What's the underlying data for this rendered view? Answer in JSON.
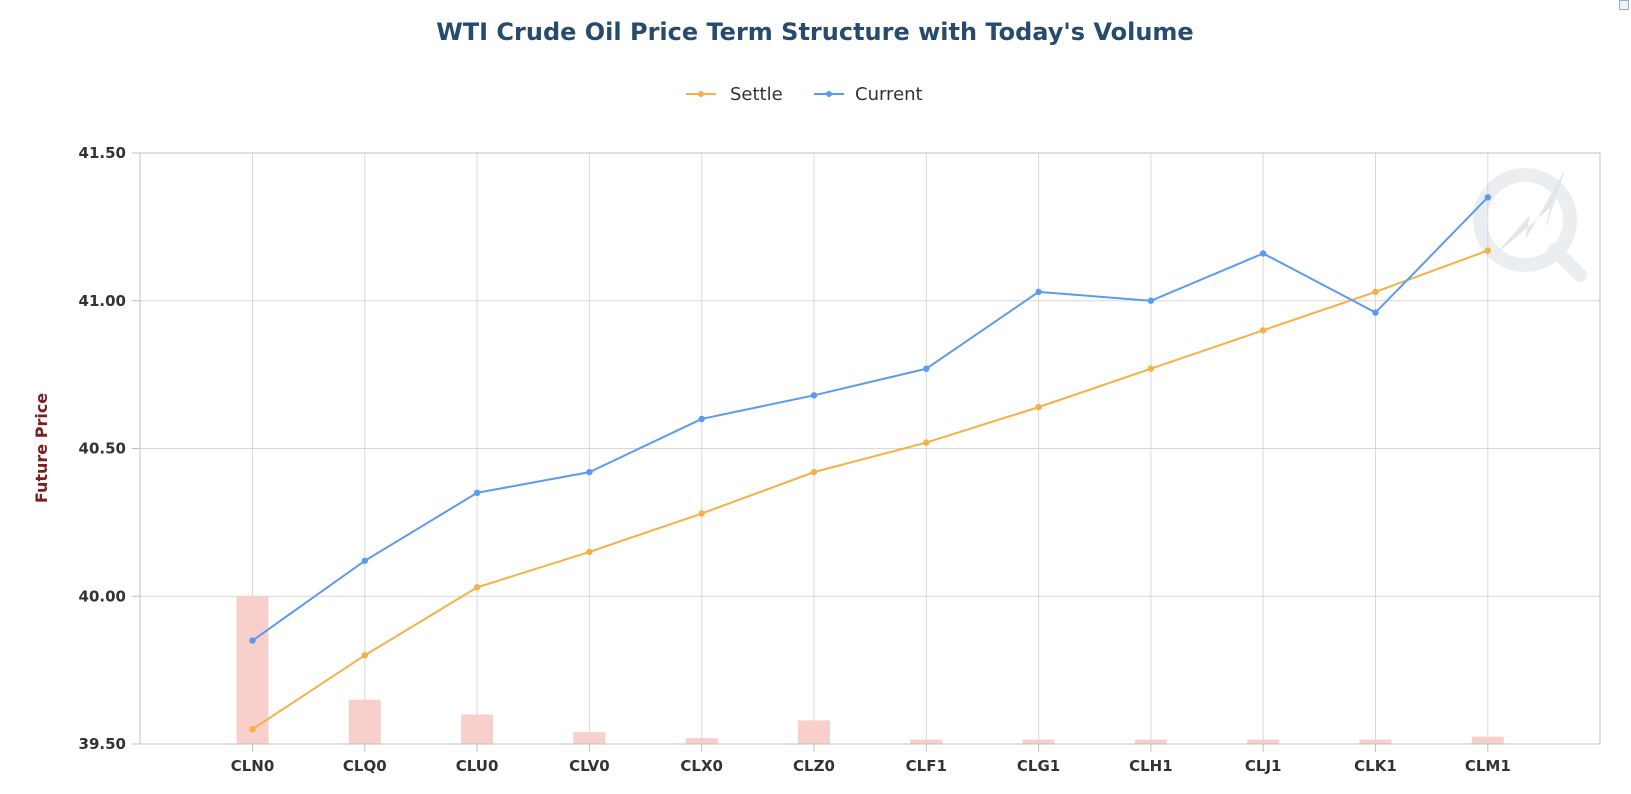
{
  "chart_data": {
    "type": "line",
    "title": "WTI Crude Oil Price Term Structure with Today's Volume",
    "ylabel": "Future Price",
    "xlabel": "",
    "ylim": [
      39.5,
      41.5
    ],
    "yticks": [
      "39.50",
      "40.00",
      "40.50",
      "41.00",
      "41.50"
    ],
    "ytick_values": [
      39.5,
      40.0,
      40.5,
      41.0,
      41.5
    ],
    "grid": true,
    "legend_position": "top-center",
    "categories": [
      "CLN0",
      "CLQ0",
      "CLU0",
      "CLV0",
      "CLX0",
      "CLZ0",
      "CLF1",
      "CLG1",
      "CLH1",
      "CLJ1",
      "CLK1",
      "CLM1"
    ],
    "series": [
      {
        "name": "Settle",
        "type": "line",
        "color": "#f7b045",
        "values": [
          39.55,
          39.8,
          40.03,
          40.15,
          40.28,
          40.42,
          40.52,
          40.64,
          40.77,
          40.9,
          41.03,
          41.17
        ]
      },
      {
        "name": "Current",
        "type": "line",
        "color": "#5b9bef",
        "values": [
          39.85,
          40.12,
          40.35,
          40.42,
          40.6,
          40.68,
          40.77,
          41.03,
          41.0,
          41.16,
          40.96,
          41.35
        ]
      },
      {
        "type": "bar",
        "color": "#f9cfcb",
        "values": [
          40.0,
          39.65,
          39.6,
          39.54,
          39.52,
          39.58,
          39.515,
          39.515,
          39.515,
          39.515,
          39.515,
          39.525
        ]
      }
    ]
  }
}
